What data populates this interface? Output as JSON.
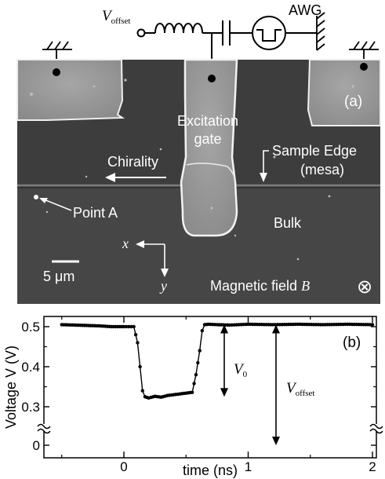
{
  "panel_a": {
    "label": "(a)",
    "circuit": {
      "v_offset_symbol": "V",
      "v_offset_sub": "offset",
      "awg_label": "AWG"
    },
    "labels": {
      "excitation_line1": "Excitation",
      "excitation_line2": "gate",
      "chirality": "Chirality",
      "sample_edge_line1": "Sample Edge",
      "sample_edge_line2": "(mesa)",
      "point_a": "Point A",
      "bulk": "Bulk",
      "axis_x": "x",
      "axis_y": "y",
      "scale_bar": "5 μm",
      "magnetic_field_text": "Magnetic field",
      "magnetic_field_symbol": "B",
      "into_page_symbol": "⊗"
    },
    "colors": {
      "sem_background": "#464646",
      "mesa_dark": "#3b3b3b",
      "metal": "#9a9a9a",
      "metal_edge": "#f0f0f0"
    }
  },
  "panel_b": {
    "label": "(b)",
    "annotation_v0_symbol": "V",
    "annotation_v0_sub": "0",
    "annotation_voffset_symbol": "V",
    "annotation_voffset_sub": "offset"
  },
  "chart_data": {
    "type": "line",
    "title": "",
    "xlabel": "time (ns)",
    "ylabel": "Voltage V (V)",
    "xlim": [
      -0.5,
      2.05
    ],
    "ylim": [
      0,
      0.52
    ],
    "y_axis_break": true,
    "x_ticks": [
      "0",
      "1",
      "2"
    ],
    "y_ticks": [
      "0",
      "0.3",
      "0.4",
      "0.5"
    ],
    "series": [
      {
        "marker": "filled-circle",
        "x": [
          -0.5,
          -0.4,
          -0.3,
          -0.2,
          -0.1,
          0.0,
          0.08,
          0.11,
          0.13,
          0.15,
          0.17,
          0.2,
          0.25,
          0.3,
          0.35,
          0.4,
          0.45,
          0.5,
          0.55,
          0.58,
          0.61,
          0.63,
          0.65,
          0.68,
          0.75,
          0.85,
          1.0,
          1.2,
          1.4,
          1.6,
          1.8,
          2.0
        ],
        "y": [
          0.505,
          0.504,
          0.503,
          0.502,
          0.5,
          0.5,
          0.5,
          0.46,
          0.4,
          0.34,
          0.325,
          0.322,
          0.326,
          0.324,
          0.328,
          0.33,
          0.332,
          0.334,
          0.336,
          0.38,
          0.44,
          0.49,
          0.505,
          0.506,
          0.505,
          0.504,
          0.506,
          0.505,
          0.506,
          0.505,
          0.506,
          0.505
        ]
      }
    ],
    "grid": false,
    "legend": "none"
  }
}
